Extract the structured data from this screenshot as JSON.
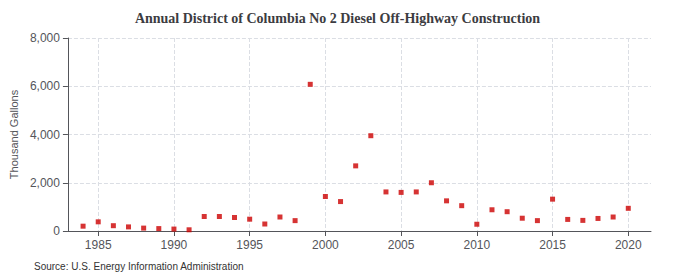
{
  "chart_data": {
    "type": "scatter",
    "title": "Annual District of Columbia No 2 Diesel Off-Highway Construction",
    "ylabel": "Thousand Gallons",
    "annotations": [
      "Source: U.S. Energy Information Administration"
    ],
    "x": [
      1984,
      1985,
      1986,
      1987,
      1988,
      1989,
      1990,
      1991,
      1992,
      1993,
      1994,
      1995,
      1996,
      1997,
      1998,
      1999,
      2000,
      2001,
      2002,
      2003,
      2004,
      2005,
      2006,
      2007,
      2008,
      2009,
      2010,
      2011,
      2012,
      2013,
      2014,
      2015,
      2016,
      2017,
      2018,
      2019,
      2020
    ],
    "values": [
      200,
      380,
      220,
      170,
      120,
      100,
      80,
      50,
      600,
      600,
      560,
      490,
      290,
      580,
      430,
      6080,
      1430,
      1220,
      2700,
      3950,
      1620,
      1600,
      1620,
      2000,
      1250,
      1050,
      280,
      880,
      800,
      530,
      430,
      1320,
      480,
      440,
      520,
      580,
      940
    ],
    "color": "#cc0000",
    "marker": "square",
    "xlim": [
      1983,
      2021.5
    ],
    "xticks": [
      1985,
      1990,
      1995,
      2000,
      2005,
      2010,
      2015,
      2020
    ],
    "ylim": [
      0,
      8000
    ],
    "yticks": [
      0,
      {
        "value": 2000,
        "label": "2,000"
      },
      {
        "value": 4000,
        "label": "4,000"
      },
      {
        "value": 6000,
        "label": "6,000"
      },
      {
        "value": 8000,
        "label": "8,000"
      }
    ],
    "grid": true
  }
}
